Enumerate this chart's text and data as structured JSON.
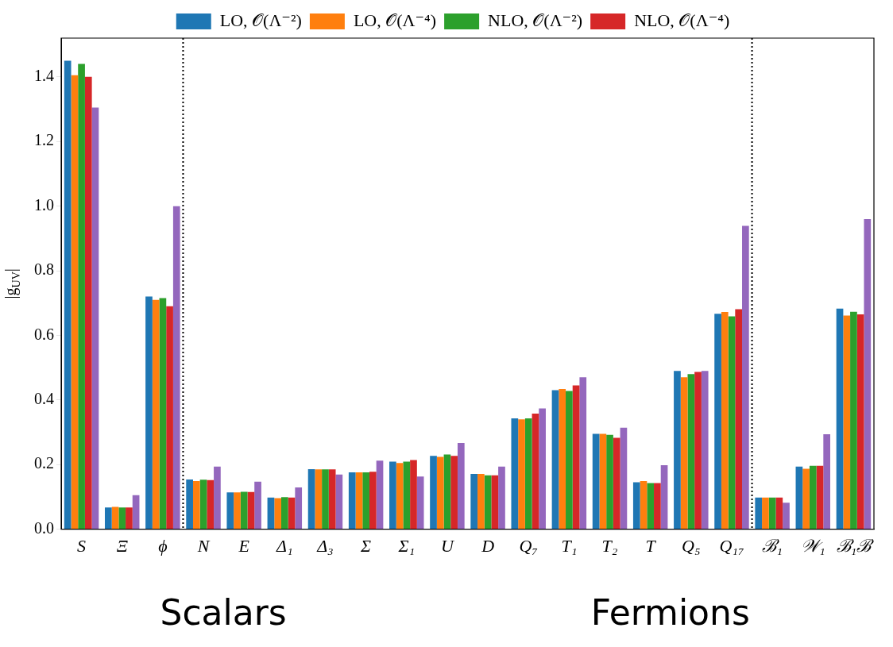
{
  "chart_data": {
    "type": "bar",
    "ylabel": "|g$_{UV}$|",
    "categories": [
      "S",
      "Ξ",
      "ϕ",
      "N",
      "E",
      "Δ₁",
      "Δ₃",
      "Σ",
      "Σ₁",
      "U",
      "D",
      "Q₇",
      "T₁",
      "T₂",
      "T",
      "Q₅",
      "Q₁₇",
      "ℬ₁",
      "𝒲₁",
      "ℬ₁ℬ"
    ],
    "series": [
      {
        "name": "LO, 𝒪(Λ⁻²)",
        "color": "#1f77b4",
        "values": [
          1.45,
          0.067,
          0.72,
          0.154,
          0.114,
          0.098,
          0.186,
          0.176,
          0.209,
          0.227,
          0.171,
          0.343,
          0.43,
          0.295,
          0.145,
          0.49,
          0.667,
          0.098,
          0.194,
          0.683
        ]
      },
      {
        "name": "LO, 𝒪(Λ⁻⁴)",
        "color": "#ff7f0e",
        "values": [
          1.405,
          0.069,
          0.71,
          0.149,
          0.114,
          0.096,
          0.185,
          0.176,
          0.205,
          0.224,
          0.171,
          0.34,
          0.434,
          0.295,
          0.149,
          0.47,
          0.672,
          0.098,
          0.187,
          0.661
        ]
      },
      {
        "name": "NLO, 𝒪(Λ⁻²)",
        "color": "#2ca02c",
        "values": [
          1.44,
          0.067,
          0.715,
          0.153,
          0.116,
          0.099,
          0.185,
          0.176,
          0.209,
          0.231,
          0.167,
          0.343,
          0.428,
          0.292,
          0.143,
          0.48,
          0.659,
          0.098,
          0.196,
          0.673
        ]
      },
      {
        "name": "NLO, 𝒪(Λ⁻⁴)",
        "color": "#d62728",
        "values": [
          1.4,
          0.067,
          0.69,
          0.152,
          0.115,
          0.098,
          0.185,
          0.178,
          0.214,
          0.227,
          0.167,
          0.358,
          0.445,
          0.283,
          0.143,
          0.487,
          0.681,
          0.098,
          0.196,
          0.665
        ]
      },
      {
        "color": "#9467bd",
        "values": [
          1.305,
          0.105,
          1.0,
          0.194,
          0.147,
          0.129,
          0.169,
          0.212,
          0.163,
          0.267,
          0.194,
          0.374,
          0.47,
          0.314,
          0.198,
          0.49,
          0.939,
          0.082,
          0.294,
          0.96
        ]
      }
    ],
    "ylim": [
      0,
      1.52
    ],
    "yticks": [
      {
        "value": 0,
        "label": "0.0"
      },
      {
        "value": 0.2,
        "label": "0.2"
      },
      {
        "value": 0.4,
        "label": "0.4"
      },
      {
        "value": 0.6,
        "label": "0.6"
      },
      {
        "value": 0.8,
        "label": "0.8"
      },
      {
        "value": 1,
        "label": "1.0"
      },
      {
        "value": 1.2,
        "label": "1.2"
      },
      {
        "value": 1.4,
        "label": "1.4"
      }
    ],
    "grid": false,
    "legend": "top",
    "annotations": [
      "Scalars",
      "Fermions"
    ]
  }
}
